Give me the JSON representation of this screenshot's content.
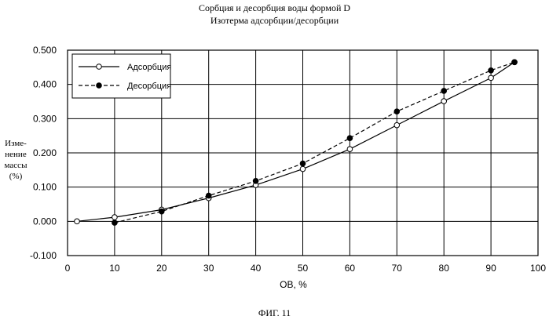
{
  "chart_data": {
    "type": "line",
    "title": "Сорбция и десорбция воды формой D",
    "subtitle": "Изотерма адсорбции/десорбции",
    "xlabel": "ОВ, %",
    "ylabel_lines": [
      "Изме-",
      "нение",
      "массы",
      "(%)"
    ],
    "x_ticks": [
      "0",
      "10",
      "20",
      "30",
      "40",
      "50",
      "60",
      "70",
      "80",
      "90",
      "100"
    ],
    "y_ticks": [
      "0.500",
      "0.400",
      "0.300",
      "0.200",
      "0.100",
      "0.000",
      "-0.100"
    ],
    "xlim": [
      0,
      100
    ],
    "ylim": [
      -0.1,
      0.5
    ],
    "grid": true,
    "legend_position": "top-left",
    "series": [
      {
        "name": "Адсорбция",
        "marker": "open-circle",
        "line": "solid",
        "x": [
          2,
          10,
          20,
          30,
          40,
          50,
          60,
          70,
          80,
          90,
          95
        ],
        "y": [
          0.0,
          0.012,
          0.034,
          0.068,
          0.106,
          0.153,
          0.211,
          0.281,
          0.351,
          0.419,
          0.465
        ]
      },
      {
        "name": "Десорбция",
        "marker": "filled-circle",
        "line": "dashed",
        "x": [
          10,
          20,
          30,
          40,
          50,
          60,
          70,
          80,
          90,
          95
        ],
        "y": [
          -0.004,
          0.029,
          0.075,
          0.118,
          0.169,
          0.243,
          0.321,
          0.381,
          0.441,
          0.465
        ]
      }
    ]
  },
  "caption": "ФИГ. 11"
}
